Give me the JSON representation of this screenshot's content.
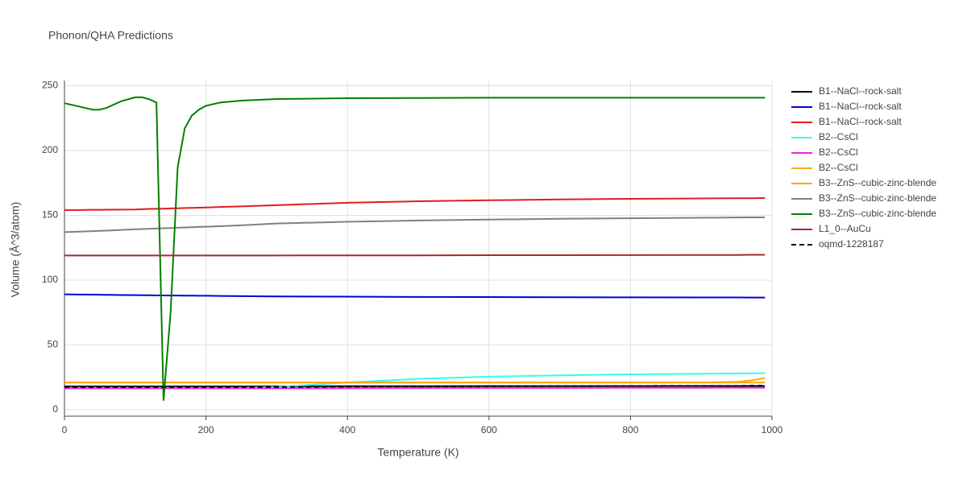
{
  "chart_data": {
    "type": "line",
    "title": "Phonon/QHA Predictions",
    "x_label": "Temperature (K)",
    "y_label": "Volume (Å^3/atom)",
    "xlim": [
      0,
      1000
    ],
    "ylim": [
      -5,
      254
    ],
    "xticks": [
      0,
      200,
      400,
      600,
      800,
      1000
    ],
    "yticks": [
      0,
      50,
      100,
      150,
      200,
      250
    ],
    "grid": true,
    "legend": "right",
    "x": [
      0,
      20,
      40,
      50,
      60,
      80,
      100,
      110,
      120,
      130,
      140,
      150,
      160,
      170,
      180,
      190,
      200,
      220,
      250,
      300,
      400,
      500,
      600,
      700,
      800,
      900,
      950,
      970,
      990
    ],
    "series": [
      {
        "name": "B1--NaCl--rock-salt",
        "color": "#000000",
        "dash": "solid",
        "values": [
          18,
          18,
          18,
          18,
          18,
          18,
          18,
          18,
          18,
          18,
          18,
          18,
          18,
          18,
          18,
          18,
          18,
          18,
          18,
          18,
          18.1,
          18.1,
          18.2,
          18.2,
          18.2,
          18.3,
          18.3,
          18.3,
          18.3
        ]
      },
      {
        "name": "B1--NaCl--rock-salt",
        "color": "#0000dd",
        "dash": "solid",
        "values": [
          89,
          88.9,
          88.8,
          88.7,
          88.6,
          88.5,
          88.4,
          88.3,
          88.3,
          88.2,
          88.2,
          88.1,
          88.1,
          88,
          88,
          87.9,
          87.9,
          87.8,
          87.6,
          87.4,
          87.2,
          87,
          86.9,
          86.8,
          86.7,
          86.6,
          86.6,
          86.5,
          86.5
        ]
      },
      {
        "name": "B1--NaCl--rock-salt",
        "color": "#e41a1c",
        "dash": "solid",
        "values": [
          154,
          154.1,
          154.2,
          154.2,
          154.3,
          154.4,
          154.5,
          154.7,
          154.9,
          155,
          155.1,
          155.3,
          155.4,
          155.6,
          155.7,
          155.9,
          156,
          156.4,
          156.9,
          157.8,
          159.7,
          160.8,
          161.6,
          162.2,
          162.7,
          163,
          163.2,
          163.2,
          163.3
        ]
      },
      {
        "name": "B2--CsCl",
        "color": "#33ffee",
        "dash": "solid",
        "values": [
          17,
          17,
          17,
          17,
          17,
          17,
          17,
          17,
          17,
          17,
          17,
          17,
          17,
          17,
          17,
          17,
          17,
          17,
          17,
          17.5,
          21,
          23.8,
          25.5,
          26.5,
          27.3,
          27.8,
          27.9,
          28,
          28.2
        ]
      },
      {
        "name": "B2--CsCl",
        "color": "#ee22ee",
        "dash": "solid",
        "values": [
          16.5,
          16.5,
          16.5,
          16.5,
          16.5,
          16.5,
          16.5,
          16.5,
          16.5,
          16.5,
          16.5,
          16.5,
          16.5,
          16.5,
          16.5,
          16.5,
          16.5,
          16.5,
          16.5,
          16.5,
          16.6,
          16.7,
          16.8,
          16.8,
          16.9,
          16.9,
          17,
          17,
          17
        ]
      },
      {
        "name": "B2--CsCl",
        "color": "#ffaa00",
        "dash": "solid",
        "values": [
          21,
          21,
          21,
          21,
          21,
          21,
          21,
          21,
          21,
          21,
          21,
          21,
          21,
          21,
          21,
          21,
          21,
          21,
          21,
          21,
          21,
          21,
          21,
          21,
          21,
          21,
          21.5,
          22.5,
          24.5
        ]
      },
      {
        "name": "B3--ZnS--cubic-zinc-blende",
        "color": "#ffa500",
        "dash": "solid",
        "values": [
          20.9,
          20.9,
          20.9,
          20.9,
          20.9,
          20.9,
          20.9,
          20.9,
          20.9,
          20.9,
          20.9,
          20.9,
          20.9,
          20.9,
          20.9,
          20.9,
          20.9,
          20.9,
          20.9,
          20.9,
          20.9,
          20.9,
          20.9,
          20.9,
          20.9,
          20.9,
          20.9,
          20.9,
          20.9
        ]
      },
      {
        "name": "B3--ZnS--cubic-zinc-blende",
        "color": "#808080",
        "dash": "solid",
        "values": [
          137,
          137.4,
          137.8,
          138,
          138.2,
          138.7,
          139.2,
          139.4,
          139.6,
          139.8,
          140,
          140.2,
          140.4,
          140.6,
          140.8,
          141,
          141.2,
          141.6,
          142.3,
          143.7,
          145,
          146,
          146.7,
          147.3,
          147.7,
          148.1,
          148.3,
          148.4,
          148.4
        ]
      },
      {
        "name": "B3--ZnS--cubic-zinc-blende",
        "color": "#008000",
        "dash": "solid",
        "values": [
          236.5,
          234,
          231.5,
          231.5,
          233,
          238,
          241,
          241,
          239.5,
          237,
          7,
          75,
          187,
          217,
          227,
          231.5,
          234.5,
          237,
          238.5,
          239.7,
          240.3,
          240.5,
          240.7,
          240.7,
          240.7,
          240.7,
          240.7,
          240.7,
          240.7
        ]
      },
      {
        "name": "L1_0--AuCu",
        "color": "#a52a2a",
        "dash": "solid",
        "values": [
          119,
          119,
          119,
          119,
          119,
          119,
          119,
          119,
          119,
          119,
          119,
          119,
          119,
          119,
          119,
          119,
          119,
          119,
          119,
          119,
          119.1,
          119.1,
          119.2,
          119.2,
          119.3,
          119.4,
          119.4,
          119.5,
          119.5
        ]
      },
      {
        "name": "oqmd-1228187",
        "color": "#000000",
        "dash": "dash",
        "values": [
          17.5,
          17.5,
          17.5,
          17.5,
          17.5,
          17.5,
          17.5,
          17.5,
          17.5,
          17.5,
          17.5,
          17.5,
          17.5,
          17.5,
          17.5,
          17.5,
          17.5,
          17.5,
          17.5,
          17.5,
          17.8,
          18,
          18.1,
          18.2,
          18.3,
          18.4,
          18.4,
          18.5,
          18.5
        ]
      }
    ]
  }
}
